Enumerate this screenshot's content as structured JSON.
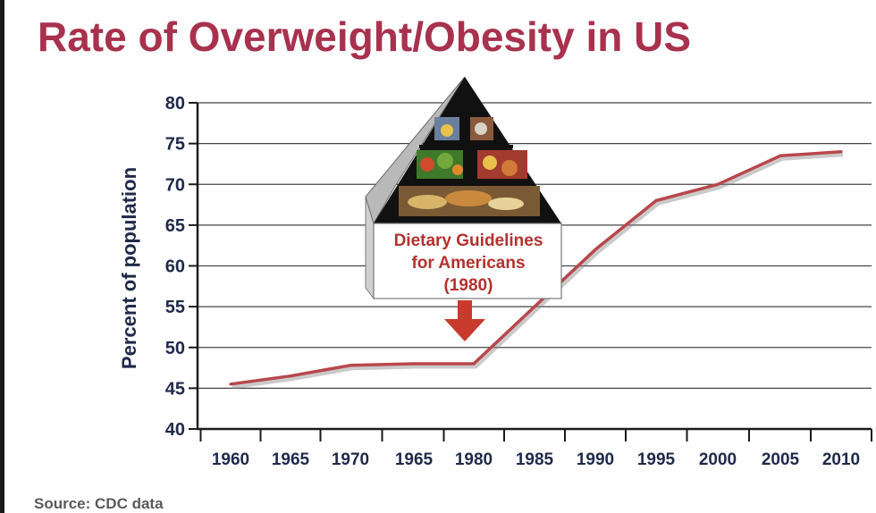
{
  "chart_data": {
    "type": "line",
    "title": "Rate of Overweight/Obesity in US",
    "ylabel": "Percent of population",
    "xlabel": "",
    "categories": [
      "1960",
      "1965",
      "1970",
      "1965",
      "1980",
      "1985",
      "1990",
      "1995",
      "2000",
      "2005",
      "2010"
    ],
    "yticks": [
      40,
      45,
      50,
      55,
      60,
      65,
      70,
      75,
      80
    ],
    "ylim": [
      40,
      80
    ],
    "grid": true,
    "series": [
      {
        "values": [
          45.5,
          46.5,
          47.8,
          48,
          48,
          55,
          62,
          68,
          70,
          73.5,
          74
        ]
      }
    ],
    "annotation": {
      "lines": [
        "Dietary Guidelines",
        "for Americans",
        "(1980)"
      ],
      "points_to": "1980"
    },
    "source": "Source: CDC data"
  },
  "colors": {
    "title": "#a8324e",
    "line": "#b8474c",
    "axis": "#1a1a1a",
    "grid": "#444444",
    "annotation_text": "#b3322e",
    "arrow": "#c73a2c"
  },
  "icons": {
    "food_pyramid": "food-pyramid-icon",
    "arrow": "down-arrow-icon"
  }
}
